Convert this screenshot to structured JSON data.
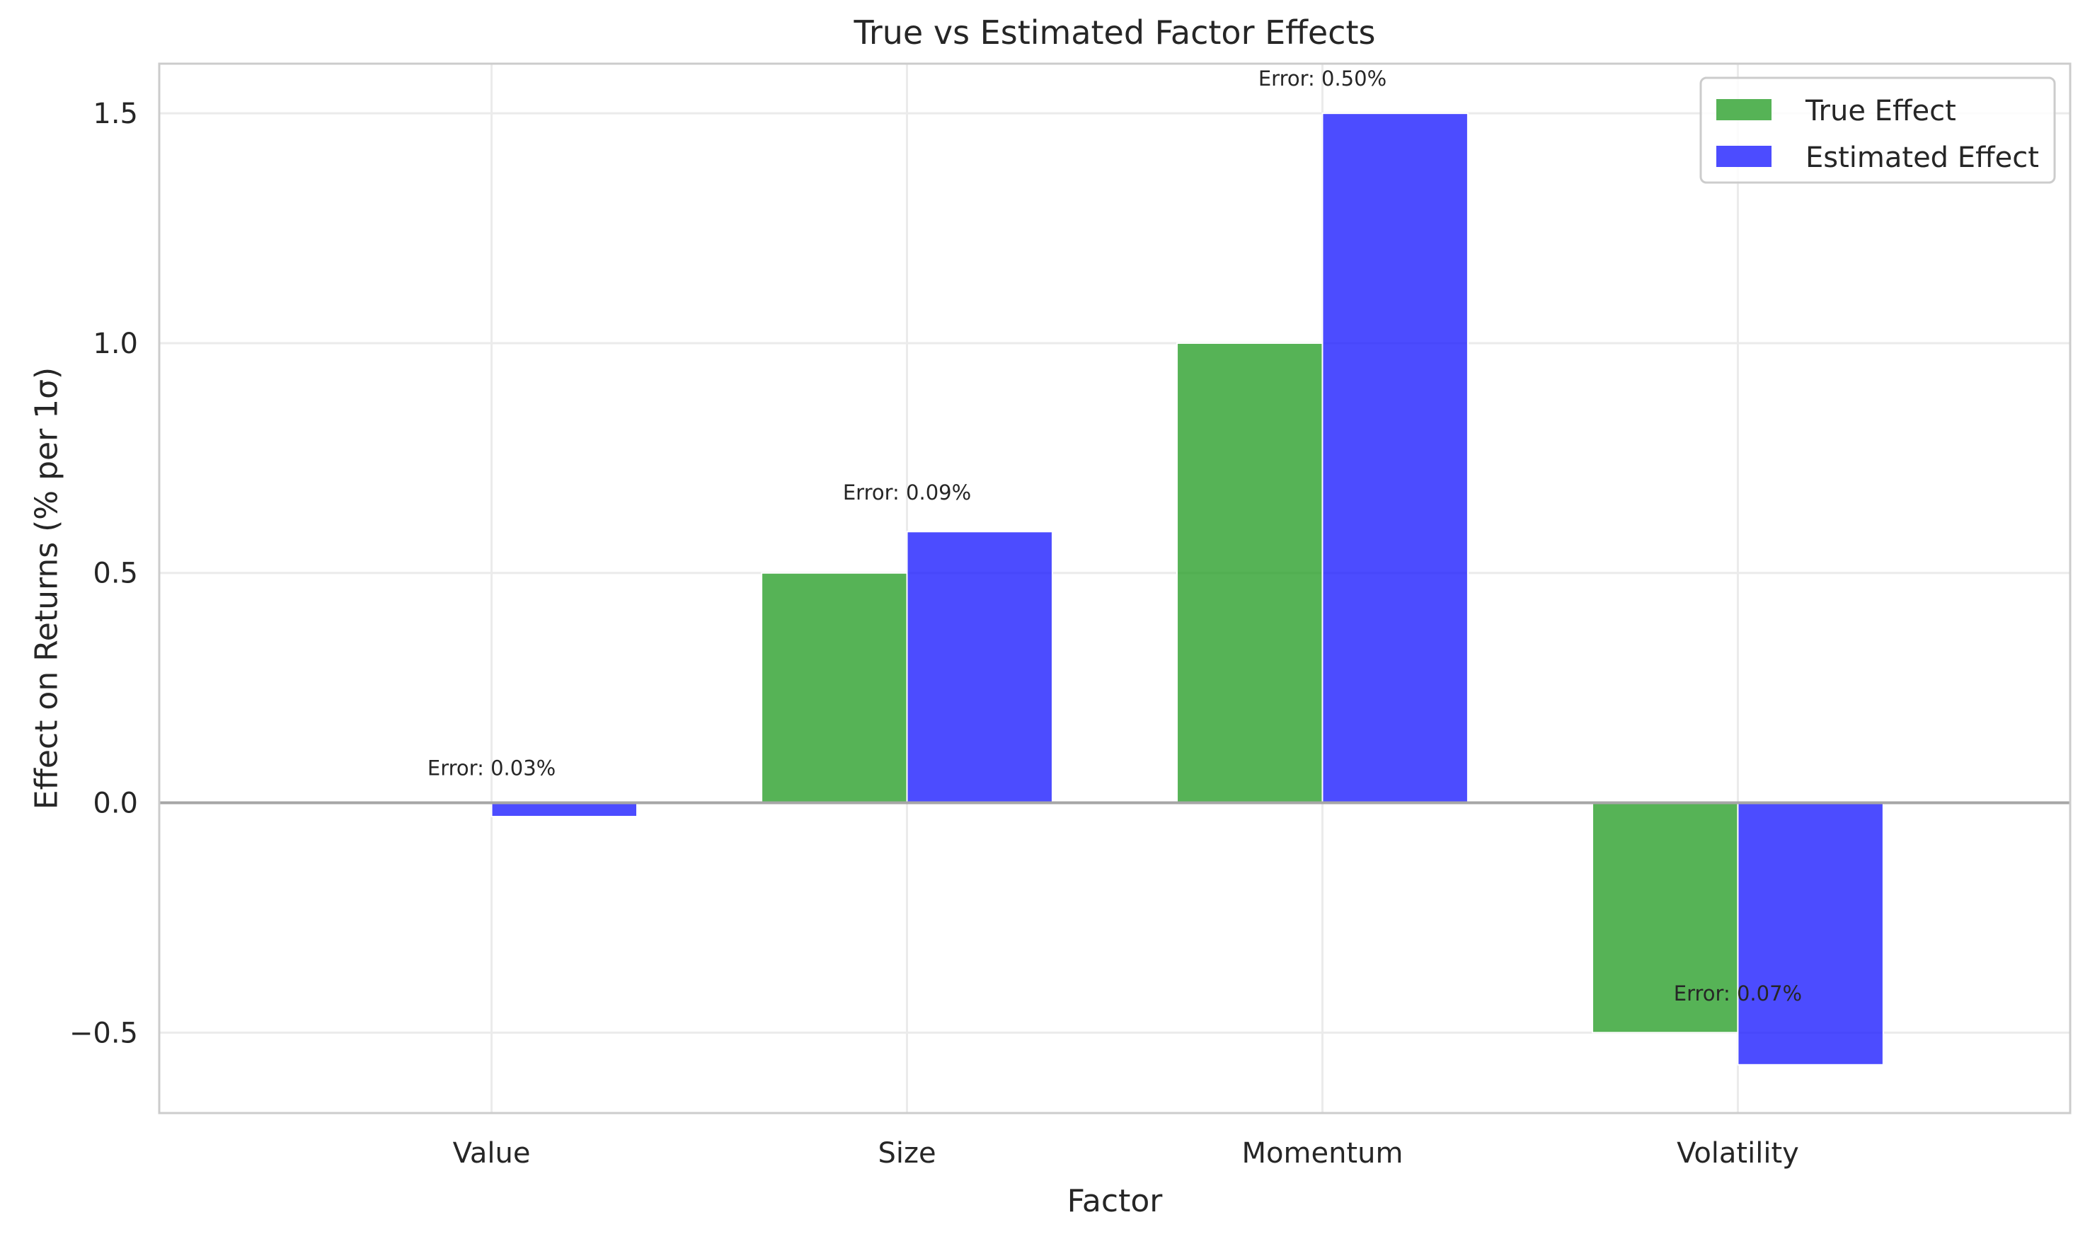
{
  "chart_data": {
    "type": "bar",
    "title": "True vs Estimated Factor Effects",
    "xlabel": "Factor",
    "ylabel": "Effect on Returns (% per 1σ)",
    "categories": [
      "Value",
      "Size",
      "Momentum",
      "Volatility"
    ],
    "series": [
      {
        "name": "True Effect",
        "color": "#2ca02c",
        "values": [
          0.0,
          0.5,
          1.0,
          -0.5
        ]
      },
      {
        "name": "Estimated Effect",
        "color": "#1f1fff",
        "values": [
          -0.03,
          0.59,
          1.5,
          -0.57
        ]
      }
    ],
    "annotations": [
      {
        "text": "Error: 0.03%",
        "category": "Value",
        "y": 0.06
      },
      {
        "text": "Error: 0.09%",
        "category": "Size",
        "y": 0.66
      },
      {
        "text": "Error: 0.50%",
        "category": "Momentum",
        "y": 1.56
      },
      {
        "text": "Error: 0.07%",
        "category": "Volatility",
        "y": -0.43
      }
    ],
    "ylim": [
      -0.675,
      1.608
    ],
    "yticks": [
      -0.5,
      0.0,
      0.5,
      1.0,
      1.5
    ],
    "ytick_labels": [
      "−0.5",
      "0.0",
      "0.5",
      "1.0",
      "1.5"
    ],
    "grid": true,
    "zero_line": true,
    "legend_position": "top-right"
  }
}
